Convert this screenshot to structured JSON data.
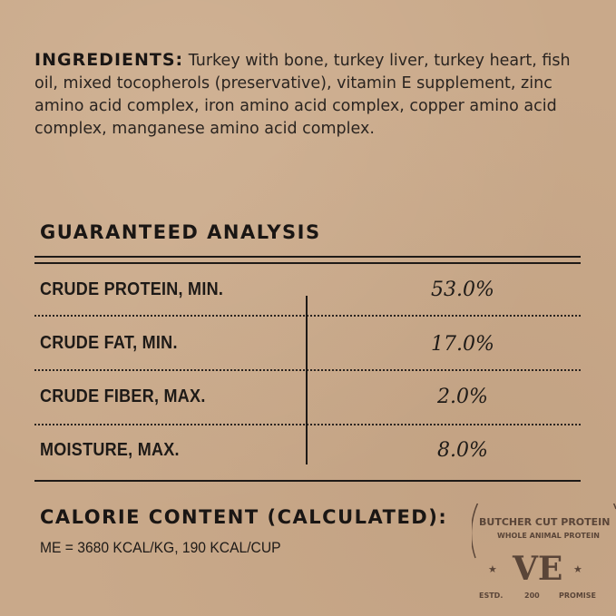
{
  "ingredients": {
    "label": "INGREDIENTS:",
    "text": "Turkey with bone, turkey liver, turkey heart, fish oil, mixed tocopherols (preservative), vitamin E supplement, zinc amino acid complex, iron amino acid complex, copper amino acid complex, manganese amino acid complex."
  },
  "analysis": {
    "title": "GUARANTEED ANALYSIS",
    "rows": [
      {
        "label": "CRUDE PROTEIN, MIN.",
        "value": "53.0%"
      },
      {
        "label": "CRUDE FAT, MIN.",
        "value": "17.0%"
      },
      {
        "label": "CRUDE FIBER, MAX.",
        "value": "2.0%"
      },
      {
        "label": "MOISTURE, MAX.",
        "value": "8.0%"
      }
    ]
  },
  "calorie": {
    "title": "CALORIE CONTENT (CALCULATED):",
    "text": "ME = 3680 KCAL/KG, 190 KCAL/CUP"
  },
  "stamp": {
    "outer": "BUTCHER CUT PROTEIN",
    "inner": "WHOLE ANIMAL PROTEIN",
    "logo": "VE",
    "estd": "ESTD.",
    "year": "200",
    "promise": "PROMISE"
  },
  "colors": {
    "background": "#c9a98a",
    "ink": "#1e1a17",
    "stamp": "#5a4538"
  }
}
